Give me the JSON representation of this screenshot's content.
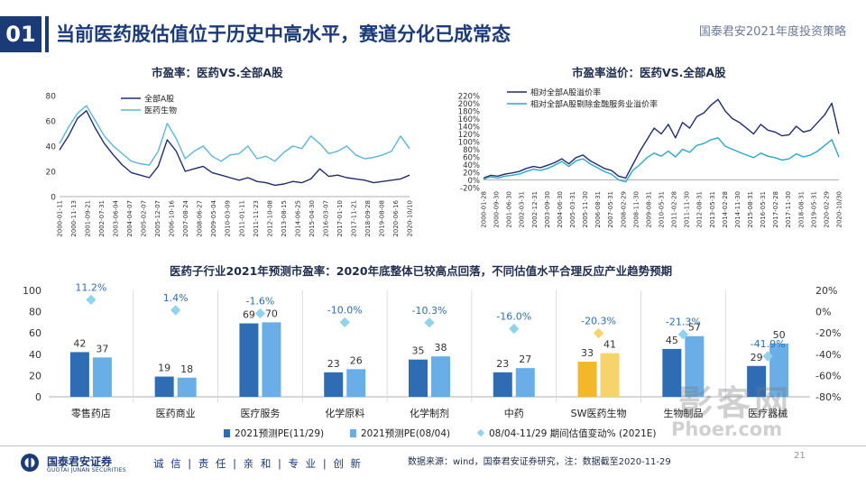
{
  "header": {
    "section_number": "01",
    "title": "当前医药股估值位于历史中高水平，赛道分化已成常态",
    "report_name": "国泰君安2021年度投资策略"
  },
  "footer": {
    "company": "国泰君安证券",
    "company_en": "GUOTAI JUNAN SECURITIES",
    "slogan": "诚 信 | 责 任 | 亲 和 | 专 业 | 创 新",
    "source": "数据来源：wind，国泰君安证券研究，注：数据截至2020-11-29",
    "page": "21"
  },
  "watermark": {
    "text": "影客网",
    "url": "Phoer.com"
  },
  "colors": {
    "navy": "#1b3a78",
    "dark_series": "#1f2f6b",
    "light_series": "#5fb4d9",
    "bar_dark": "#2e6db4",
    "bar_light": "#6aaee8",
    "bar_gold_dark": "#f2b82a",
    "bar_gold_light": "#f7d36b",
    "diamond": "#8fd3ee"
  },
  "chart_data": [
    {
      "id": "pe",
      "type": "line",
      "title": "市盈率：医药VS.全部A股",
      "ylim": [
        0,
        80
      ],
      "yticks": [
        0,
        20,
        40,
        60,
        80
      ],
      "x_ticks": [
        "2000-01-11",
        "2000-11-13",
        "2001-09-21",
        "2002-07-31",
        "2003-06-04",
        "2004-04-07",
        "2005-02-07",
        "2005-12-07",
        "2006-10-16",
        "2007-08-24",
        "2008-06-27",
        "2009-05-04",
        "2010-03-09",
        "2011-01-11",
        "2011-11-23",
        "2012-10-08",
        "2013-08-15",
        "2014-06-25",
        "2015-04-30",
        "2016-03-07",
        "2017-01-10",
        "2017-11-21",
        "2018-09-28",
        "2019-08-08",
        "2020-06-16",
        "2020-10/10"
      ],
      "series": [
        {
          "name": "全部A股",
          "color": "#1f2f6b",
          "values": [
            37,
            48,
            62,
            68,
            54,
            42,
            33,
            25,
            19,
            17,
            15,
            24,
            45,
            36,
            20,
            22,
            24,
            19,
            17,
            15,
            13,
            15,
            12,
            11,
            9,
            10,
            12,
            11,
            14,
            22,
            16,
            17,
            15,
            14,
            13,
            11,
            12,
            13,
            14,
            17
          ]
        },
        {
          "name": "医药生物",
          "color": "#5fb4d9",
          "values": [
            42,
            55,
            66,
            72,
            60,
            48,
            40,
            34,
            28,
            26,
            25,
            36,
            58,
            46,
            30,
            36,
            40,
            32,
            28,
            33,
            34,
            40,
            30,
            32,
            28,
            35,
            40,
            38,
            48,
            42,
            34,
            36,
            40,
            33,
            30,
            31,
            33,
            36,
            48,
            38
          ]
        }
      ]
    },
    {
      "id": "premium",
      "type": "line",
      "title": "市盈率溢价：医药VS.全部A股",
      "ylim": [
        -20,
        220
      ],
      "yticks": [
        -20,
        0,
        20,
        40,
        60,
        80,
        100,
        120,
        140,
        160,
        180,
        200,
        220
      ],
      "ytick_labels": [
        "-20%",
        "0%",
        "20%",
        "40%",
        "60%",
        "80%",
        "100%",
        "120%",
        "140%",
        "160%",
        "180%",
        "200%",
        "220%"
      ],
      "x_ticks": [
        "2000-01-28",
        "2000-09-30",
        "2001-06-30",
        "2002-03-31",
        "2002-12-31",
        "2003-09-30",
        "2004-06-30",
        "2005-03-31",
        "2005-11-30",
        "2006-08-31",
        "2007-05-31",
        "2008-02-29",
        "2008-11-30",
        "2009-08-31",
        "2010-05-31",
        "2011-02-28",
        "2011-11-30",
        "2012-08-31",
        "2013-05-31",
        "2014-02-28",
        "2014-11-30",
        "2015-08-31",
        "2016-05-31",
        "2017-02-28",
        "2017-11-30",
        "2018-08-31",
        "2019-05-31",
        "2020-02-29",
        "2020-10/30"
      ],
      "series": [
        {
          "name": "相对全部A股溢价率",
          "color": "#1f2f6b",
          "values": [
            5,
            12,
            10,
            15,
            18,
            22,
            30,
            35,
            32,
            38,
            45,
            55,
            42,
            58,
            65,
            50,
            40,
            30,
            25,
            10,
            5,
            40,
            75,
            105,
            135,
            120,
            145,
            110,
            150,
            135,
            165,
            175,
            195,
            210,
            180,
            160,
            150,
            135,
            120,
            145,
            130,
            125,
            115,
            118,
            140,
            125,
            130,
            150,
            170,
            200,
            120
          ]
        },
        {
          "name": "相对全部A股剔除金融服务业溢价率",
          "color": "#2ba8c9",
          "values": [
            2,
            8,
            5,
            10,
            12,
            15,
            22,
            28,
            25,
            30,
            38,
            48,
            35,
            50,
            55,
            42,
            32,
            22,
            15,
            0,
            -5,
            25,
            40,
            58,
            70,
            62,
            75,
            60,
            80,
            72,
            90,
            95,
            105,
            110,
            88,
            80,
            72,
            65,
            58,
            70,
            62,
            58,
            52,
            55,
            68,
            60,
            65,
            75,
            90,
            105,
            60
          ]
        }
      ]
    },
    {
      "id": "subindustry",
      "type": "bar",
      "title": "医药子行业2021年预测市盈率：2020年底整体已较高点回落，不同估值水平合理反应产业趋势预期",
      "categories": [
        "零售药店",
        "医药商业",
        "医疗服务",
        "化学原料",
        "化学制剂",
        "中药",
        "SW医药生物",
        "生物制品",
        "医疗器械"
      ],
      "ylim": [
        0,
        100
      ],
      "yticks": [
        0,
        20,
        40,
        60,
        80,
        100
      ],
      "y2lim": [
        -80,
        20
      ],
      "y2ticks": [
        -80,
        -60,
        -40,
        -20,
        0,
        20
      ],
      "y2tick_labels": [
        "-80%",
        "-60%",
        "-40%",
        "-20%",
        "0%",
        "20%"
      ],
      "series": [
        {
          "name": "2021预测PE(11/29)",
          "color": "#2e6db4",
          "values": [
            42,
            19,
            69,
            23,
            35,
            23,
            33,
            45,
            29
          ],
          "labels": [
            "42",
            "19",
            "69",
            "23",
            "35",
            "23",
            "33",
            "45",
            "29"
          ]
        },
        {
          "name": "2021预测PE(08/04)",
          "color": "#6aaee8",
          "values": [
            37,
            18,
            70,
            26,
            38,
            27,
            41,
            57,
            50
          ],
          "labels": [
            "37",
            "18",
            "70",
            "26",
            "38",
            "27",
            "41",
            "57",
            "50"
          ]
        },
        {
          "name": "08/04-11/29 期间估值变动% (2021E)",
          "color": "#8fd3ee",
          "axis": "right",
          "values": [
            11.2,
            1.4,
            -1.6,
            -10.0,
            -10.3,
            -16.0,
            -20.3,
            -21.3,
            -41.9
          ],
          "labels": [
            "11.2%",
            "1.4%",
            "-1.6%",
            "-10.0%",
            "-10.3%",
            "-16.0%",
            "-20.3%",
            "-21.3%",
            "-41.9%"
          ]
        }
      ],
      "highlight_category": "SW医药生物"
    }
  ]
}
